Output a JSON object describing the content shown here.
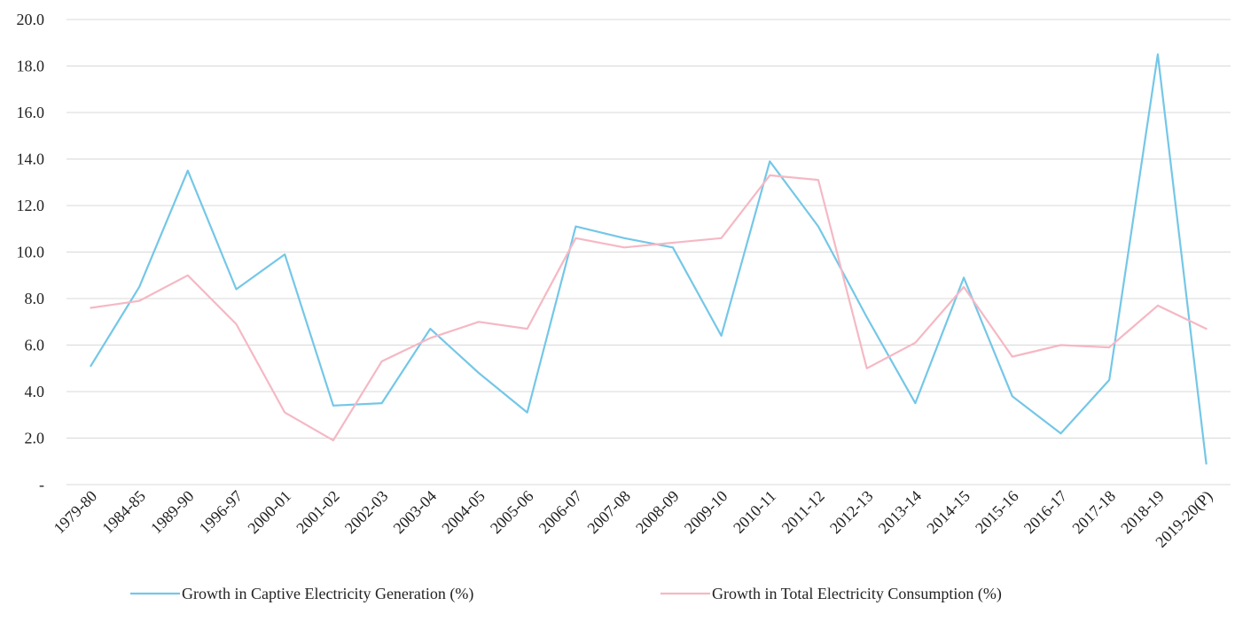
{
  "chart_data": {
    "type": "line",
    "title": "",
    "xlabel": "",
    "ylabel": "",
    "ylim": [
      0,
      20
    ],
    "y_ticks": [
      0,
      2,
      4,
      6,
      8,
      10,
      12,
      14,
      16,
      18,
      20
    ],
    "y_tick_labels": [
      "-",
      "2.0",
      "4.0",
      "6.0",
      "8.0",
      "10.0",
      "12.0",
      "14.0",
      "16.0",
      "18.0",
      "20.0"
    ],
    "grid": true,
    "legend_position": "bottom",
    "categories": [
      "1979-80",
      "1984-85",
      "1989-90",
      "1996-97",
      "2000-01",
      "2001-02",
      "2002-03",
      "2003-04",
      "2004-05",
      "2005-06",
      "2006-07",
      "2007-08",
      "2008-09",
      "2009-10",
      "2010-11",
      "2011-12",
      "2012-13",
      "2013-14",
      "2014-15",
      "2015-16",
      "2016-17",
      "2017-18",
      "2018-19",
      "2019-20(P)"
    ],
    "series": [
      {
        "name": "Growth in Captive Electricity Generation (%)",
        "color": "#74c7e7",
        "values": [
          5.1,
          8.5,
          13.5,
          8.4,
          9.9,
          3.4,
          3.5,
          6.7,
          4.8,
          3.1,
          11.1,
          10.6,
          10.2,
          6.4,
          13.9,
          11.1,
          7.2,
          3.5,
          8.9,
          3.8,
          2.2,
          4.5,
          18.5,
          0.9
        ]
      },
      {
        "name": "Growth in Total Electricity Consumption (%)",
        "color": "#f5b8c4",
        "values": [
          7.6,
          7.9,
          9.0,
          6.9,
          3.1,
          1.9,
          5.3,
          6.3,
          7.0,
          6.7,
          10.6,
          10.2,
          10.4,
          10.6,
          13.3,
          13.1,
          5.0,
          6.1,
          8.5,
          5.5,
          6.0,
          5.9,
          7.7,
          6.7
        ]
      }
    ]
  }
}
